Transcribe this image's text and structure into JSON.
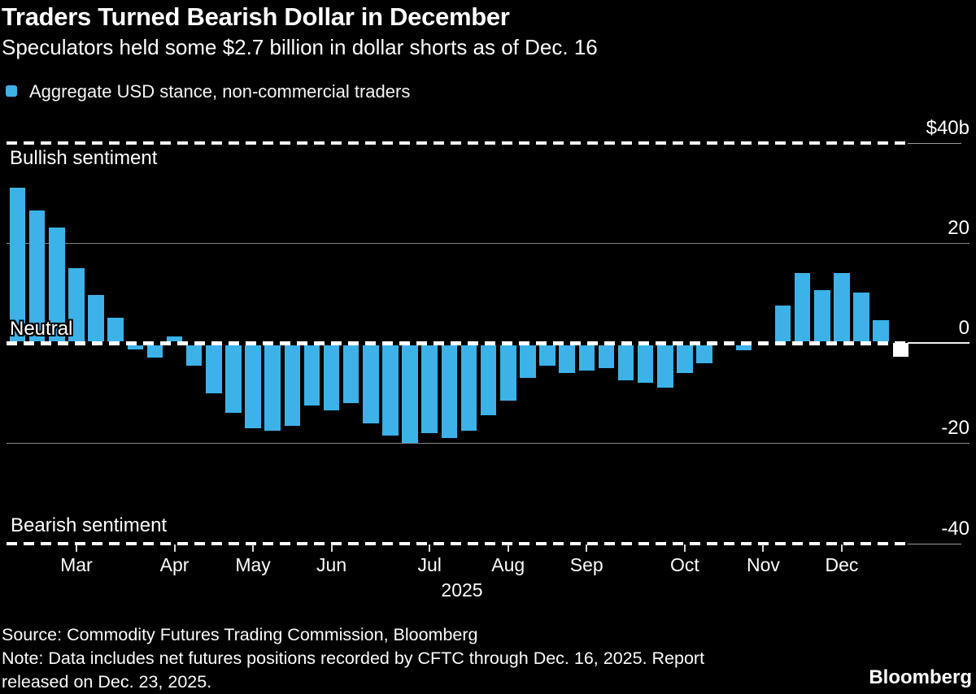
{
  "header": {
    "title": "Traders Turned Bearish Dollar in December",
    "subtitle": "Speculators held some $2.7 billion in dollar shorts as of Dec. 16"
  },
  "legend": {
    "label": "Aggregate USD stance, non-commercial traders",
    "swatch_color": "#3cb2e9"
  },
  "chart_data": {
    "type": "bar",
    "unit": "billions of US dollars",
    "ylim": [
      -45,
      45
    ],
    "grid": "horizontal",
    "y_axis_ticks": [
      {
        "label": "$40b",
        "value": 40
      },
      {
        "label": "20",
        "value": 20
      },
      {
        "label": "0",
        "value": 0
      },
      {
        "label": "-20",
        "value": -20
      },
      {
        "label": "-40",
        "value": -40
      }
    ],
    "gridline_values": [
      20,
      -20
    ],
    "guide_lines": [
      {
        "value": 40,
        "style": "dashed",
        "annotation": "Bullish sentiment"
      },
      {
        "value": 0,
        "style": "dashed",
        "annotation": "Neutral"
      },
      {
        "value": -40,
        "style": "dashed",
        "annotation": "Bearish sentiment"
      }
    ],
    "x_month_ticks": [
      {
        "label": "Mar",
        "index": 3
      },
      {
        "label": "Apr",
        "index": 8
      },
      {
        "label": "May",
        "index": 12
      },
      {
        "label": "Jun",
        "index": 16
      },
      {
        "label": "Jul",
        "index": 21
      },
      {
        "label": "Aug",
        "index": 25
      },
      {
        "label": "Sep",
        "index": 29
      },
      {
        "label": "Oct",
        "index": 34
      },
      {
        "label": "Nov",
        "index": 38
      },
      {
        "label": "Dec",
        "index": 42
      }
    ],
    "x_axis_year": "2025",
    "series": [
      {
        "name": "Aggregate USD stance, non-commercial traders",
        "values": [
          31,
          26.5,
          23,
          15,
          9.5,
          5,
          -1.3,
          -3,
          1.3,
          -4.5,
          -10,
          -14,
          -17,
          -17.5,
          -16.5,
          -12.5,
          -13.5,
          -12,
          -16,
          -18.5,
          -20,
          -18,
          -19,
          -17.5,
          -14.5,
          -11.5,
          -7,
          -4.5,
          -6,
          -5.5,
          -5,
          -7.5,
          -8,
          -9,
          -6,
          -4,
          0,
          -1.5,
          0,
          7.5,
          14,
          10.5,
          14,
          10,
          4.5,
          -2.7
        ]
      }
    ],
    "highlight_index": 45,
    "legend_position": "top-left"
  },
  "footer": {
    "source": "Source: Commodity Futures Trading Commission, Bloomberg",
    "note_lines": [
      "Note: Data includes net futures positions recorded by CFTC through Dec. 16, 2025. Report",
      "released on Dec. 23, 2025."
    ],
    "brand": "Bloomberg"
  },
  "colors": {
    "background": "#000000",
    "bar": "#3cb2e9",
    "highlight_bar": "#ffffff",
    "gridline": "#848484",
    "text": "#ffffff"
  }
}
